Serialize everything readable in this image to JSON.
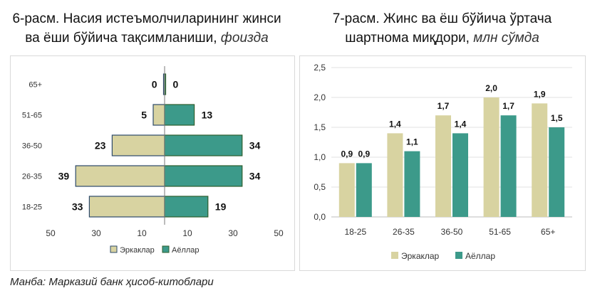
{
  "colors": {
    "male": "#d8d3a1",
    "female": "#3c9a8a",
    "male_stroke": "#2d4a6a",
    "female_stroke": "#2e5f2e"
  },
  "left": {
    "title_line1": "6-расм. Насия истеъмолчиларининг жинси",
    "title_line2": "ва ёши бўйича тақсимланиши,",
    "title_unit": "фоизда",
    "legend_male": "Эркаклар",
    "legend_female": "Аёллар"
  },
  "right": {
    "title_line1": "7-расм. Жинс ва ёш бўйича ўртача",
    "title_line2": "шартнома миқдори,",
    "title_unit": "млн сўмда",
    "legend_male": "Эркаклар",
    "legend_female": "Аёллар"
  },
  "source": "Манба: Марказий банк ҳисоб-китоблари",
  "chart_data": [
    {
      "type": "bar",
      "orientation": "horizontal-pyramid",
      "categories": [
        "65+",
        "51-65",
        "36-50",
        "26-35",
        "18-25"
      ],
      "series": [
        {
          "name": "Эркаклар",
          "values": [
            0,
            5,
            23,
            39,
            33
          ],
          "labels": [
            "0",
            "5",
            "23",
            "39",
            "33"
          ]
        },
        {
          "name": "Аёллар",
          "values": [
            0,
            13,
            34,
            34,
            19
          ],
          "labels": [
            "0",
            "13",
            "34",
            "34",
            "19"
          ]
        }
      ],
      "xticks": [
        "50",
        "30",
        "10",
        "10",
        "30",
        "50"
      ],
      "xlim": [
        -50,
        50
      ],
      "legend": "bottom"
    },
    {
      "type": "bar",
      "categories": [
        "18-25",
        "26-35",
        "36-50",
        "51-65",
        "65+"
      ],
      "series": [
        {
          "name": "Эркаклар",
          "values": [
            0.9,
            1.4,
            1.7,
            2.0,
            1.9
          ],
          "labels": [
            "0,9",
            "1,4",
            "1,7",
            "2,0",
            "1,9"
          ]
        },
        {
          "name": "Аёллар",
          "values": [
            0.9,
            1.1,
            1.4,
            1.7,
            1.5
          ],
          "labels": [
            "0,9",
            "1,1",
            "1,4",
            "1,7",
            "1,5"
          ]
        }
      ],
      "yticks": [
        "0,0",
        "0,5",
        "1,0",
        "1,5",
        "2,0",
        "2,5"
      ],
      "ylim": [
        0,
        2.5
      ],
      "grid": true,
      "legend": "bottom"
    }
  ]
}
